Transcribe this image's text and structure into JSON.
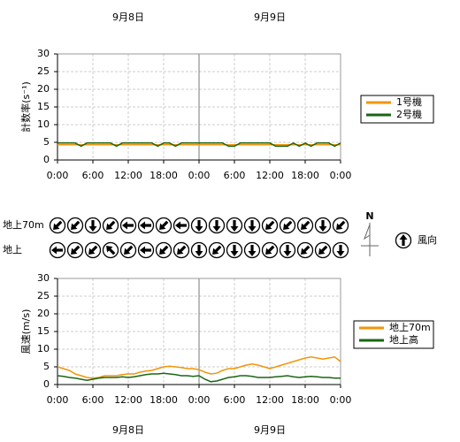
{
  "chart_data": [
    {
      "type": "line",
      "ylabel": "計数率(s⁻¹)",
      "date_labels": [
        "9月8日",
        "9月9日"
      ],
      "date_position": "top",
      "x": [
        0,
        1,
        2,
        3,
        4,
        5,
        6,
        7,
        8,
        9,
        10,
        11,
        12,
        13,
        14,
        15,
        16,
        17,
        18,
        19,
        20,
        21,
        22,
        23,
        24,
        25,
        26,
        27,
        28,
        29,
        30,
        31,
        32,
        33,
        34,
        35,
        36,
        37,
        38,
        39,
        40,
        41,
        42,
        43,
        44,
        45,
        46,
        47,
        48
      ],
      "xlim": [
        0,
        48
      ],
      "xticks": [
        {
          "value": 0,
          "label": "0:00"
        },
        {
          "value": 6,
          "label": "6:00"
        },
        {
          "value": 12,
          "label": "12:00"
        },
        {
          "value": 18,
          "label": "18:00"
        },
        {
          "value": 24,
          "label": "0:00"
        },
        {
          "value": 30,
          "label": "6:00"
        },
        {
          "value": 36,
          "label": "12:00"
        },
        {
          "value": 42,
          "label": "18:00"
        },
        {
          "value": 48,
          "label": "0:00"
        }
      ],
      "ylim": [
        0,
        30
      ],
      "yticks": [
        0,
        5,
        10,
        15,
        20,
        25,
        30
      ],
      "grid": true,
      "series": [
        {
          "name": "1号機",
          "color": "#f0960a",
          "values": [
            4.3,
            4.3,
            4.3,
            4.3,
            4.3,
            4.3,
            4.3,
            4.3,
            4.3,
            4.3,
            4.3,
            4.3,
            4.3,
            4.3,
            4.3,
            4.3,
            4.3,
            4.3,
            4.3,
            4.3,
            4.3,
            4.3,
            4.3,
            4.3,
            4.3,
            4.3,
            4.3,
            4.3,
            4.3,
            4.3,
            4.3,
            4.3,
            4.3,
            4.3,
            4.3,
            4.3,
            4.3,
            4.3,
            4.3,
            4.3,
            4.3,
            4.3,
            4.3,
            4.3,
            4.3,
            4.3,
            4.3,
            4.3,
            4.3
          ]
        },
        {
          "name": "2号機",
          "color": "#1a6614",
          "values": [
            4.8,
            4.8,
            4.8,
            4.8,
            3.9,
            4.8,
            4.8,
            4.8,
            4.8,
            4.8,
            3.9,
            4.8,
            4.8,
            4.8,
            4.8,
            4.8,
            4.8,
            3.9,
            4.8,
            4.8,
            3.9,
            4.8,
            4.8,
            4.8,
            4.8,
            4.8,
            4.8,
            4.8,
            4.8,
            3.9,
            3.9,
            4.8,
            4.8,
            4.8,
            4.8,
            4.8,
            4.8,
            3.9,
            3.9,
            3.9,
            4.8,
            3.9,
            4.8,
            3.9,
            4.8,
            4.8,
            4.8,
            3.9,
            4.8
          ]
        }
      ]
    },
    {
      "type": "wind_direction",
      "x": [
        0,
        3,
        6,
        9,
        12,
        15,
        18,
        21,
        24,
        27,
        30,
        33,
        36,
        39,
        42,
        45,
        48
      ],
      "xlim": [
        0,
        48
      ],
      "north_label": "N",
      "legend_label": "風向",
      "rows": [
        {
          "name": "地上70m",
          "directions": [
            225,
            225,
            180,
            225,
            270,
            270,
            225,
            270,
            180,
            180,
            180,
            180,
            225,
            225,
            225,
            180,
            225
          ]
        },
        {
          "name": "地上",
          "directions": [
            270,
            225,
            225,
            315,
            225,
            270,
            225,
            225,
            180,
            225,
            180,
            180,
            225,
            180,
            225,
            225,
            180
          ]
        }
      ]
    },
    {
      "type": "line",
      "ylabel": "風速(m/s)",
      "date_labels": [
        "9月8日",
        "9月9日"
      ],
      "date_position": "bottom",
      "x": [
        0,
        1,
        2,
        3,
        4,
        5,
        6,
        7,
        8,
        9,
        10,
        11,
        12,
        13,
        14,
        15,
        16,
        17,
        18,
        19,
        20,
        21,
        22,
        23,
        24,
        25,
        26,
        27,
        28,
        29,
        30,
        31,
        32,
        33,
        34,
        35,
        36,
        37,
        38,
        39,
        40,
        41,
        42,
        43,
        44,
        45,
        46,
        47,
        48
      ],
      "xlim": [
        0,
        48
      ],
      "xticks": [
        {
          "value": 0,
          "label": "0:00"
        },
        {
          "value": 6,
          "label": "6:00"
        },
        {
          "value": 12,
          "label": "12:00"
        },
        {
          "value": 18,
          "label": "18:00"
        },
        {
          "value": 24,
          "label": "0:00"
        },
        {
          "value": 30,
          "label": "6:00"
        },
        {
          "value": 36,
          "label": "12:00"
        },
        {
          "value": 42,
          "label": "18:00"
        },
        {
          "value": 48,
          "label": "0:00"
        }
      ],
      "ylim": [
        0,
        30
      ],
      "yticks": [
        0,
        5,
        10,
        15,
        20,
        25,
        30
      ],
      "grid": true,
      "series": [
        {
          "name": "地上70m",
          "color": "#f0960a",
          "values": [
            5,
            4.5,
            4,
            3,
            2.5,
            2,
            1.8,
            2,
            2.5,
            2.5,
            2.5,
            2.8,
            3,
            3,
            3.5,
            3.8,
            4,
            4.5,
            5,
            5.2,
            5,
            4.8,
            4.5,
            4.5,
            4.2,
            3.5,
            3,
            3.2,
            4,
            4.5,
            4.5,
            5,
            5.5,
            5.8,
            5.5,
            5,
            4.5,
            5,
            5.5,
            6,
            6.5,
            7,
            7.5,
            7.8,
            7.5,
            7.2,
            7.5,
            7.8,
            6.5
          ]
        },
        {
          "name": "地上高",
          "color": "#1a6614",
          "values": [
            2.5,
            2.3,
            2,
            1.8,
            1.5,
            1.2,
            1.5,
            1.8,
            2,
            2,
            2,
            2.2,
            2,
            2.2,
            2.5,
            2.8,
            3,
            3,
            3.2,
            3,
            2.8,
            2.5,
            2.5,
            2.3,
            2.5,
            1.5,
            0.8,
            1,
            1.5,
            2,
            2.2,
            2.5,
            2.5,
            2.3,
            2,
            2,
            2,
            2.2,
            2.3,
            2.5,
            2.2,
            2,
            2.2,
            2.3,
            2.2,
            2,
            2,
            1.8,
            1.8
          ]
        }
      ]
    }
  ]
}
